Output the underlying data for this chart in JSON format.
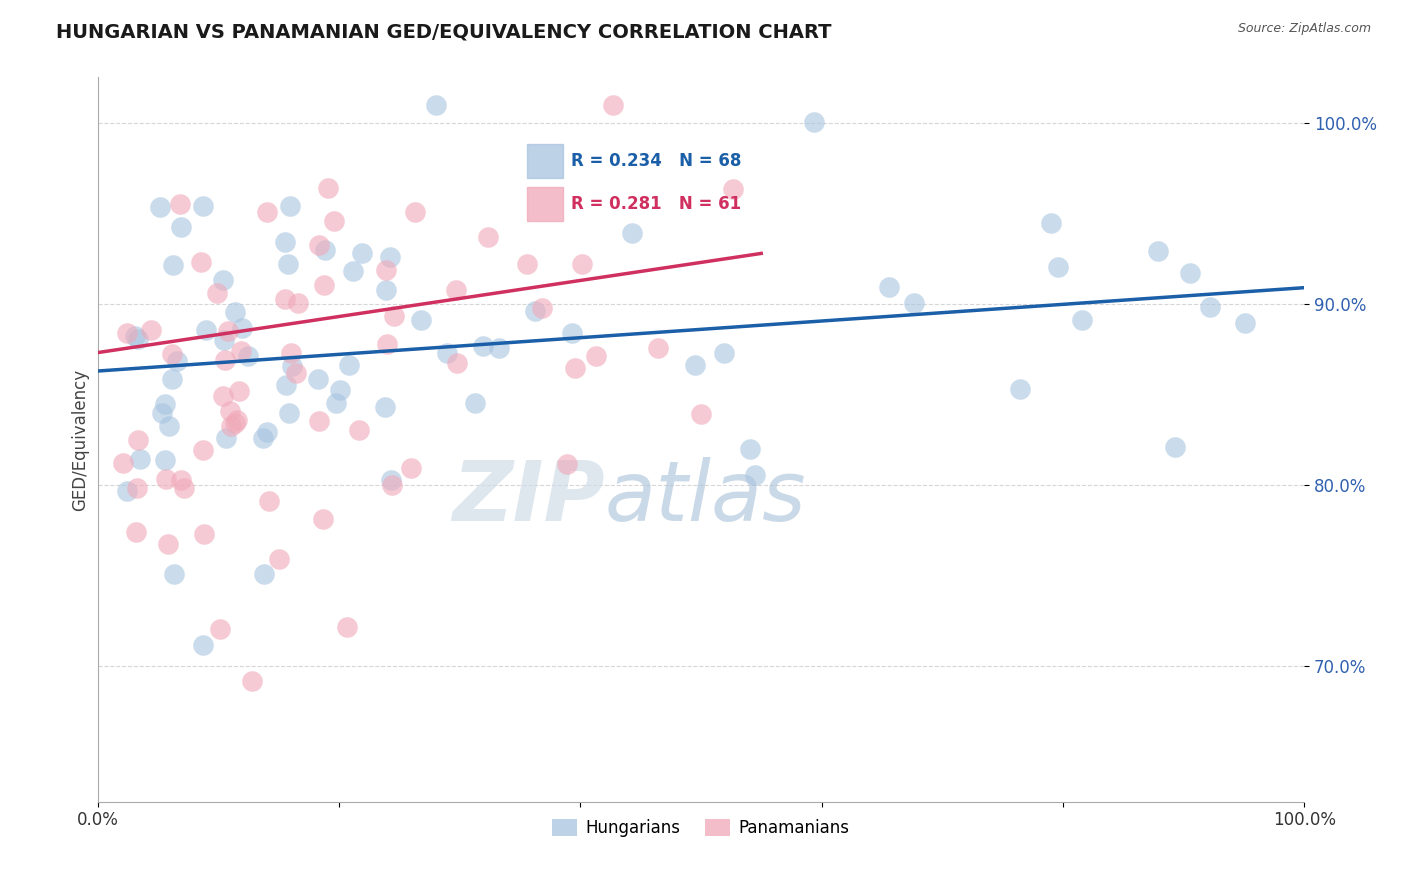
{
  "title": "HUNGARIAN VS PANAMANIAN GED/EQUIVALENCY CORRELATION CHART",
  "source_text": "Source: ZipAtlas.com",
  "ylabel": "GED/Equivalency",
  "xlim": [
    0.0,
    1.0
  ],
  "ylim": [
    0.625,
    1.025
  ],
  "yticks": [
    0.7,
    0.8,
    0.9,
    1.0
  ],
  "ytick_labels": [
    "70.0%",
    "80.0%",
    "90.0%",
    "100.0%"
  ],
  "xtick_labels": [
    "0.0%",
    "",
    "",
    "",
    "",
    "100.0%"
  ],
  "blue_color": "#a8c4e0",
  "pink_color": "#f0a8b8",
  "trendline_blue": "#1a5fa8",
  "trendline_pink": "#d03060",
  "watermark_zip": "ZIP",
  "watermark_atlas": "atlas",
  "legend_blue_text": "R = 0.234   N = 68",
  "legend_pink_text": "R = 0.281   N = 61"
}
